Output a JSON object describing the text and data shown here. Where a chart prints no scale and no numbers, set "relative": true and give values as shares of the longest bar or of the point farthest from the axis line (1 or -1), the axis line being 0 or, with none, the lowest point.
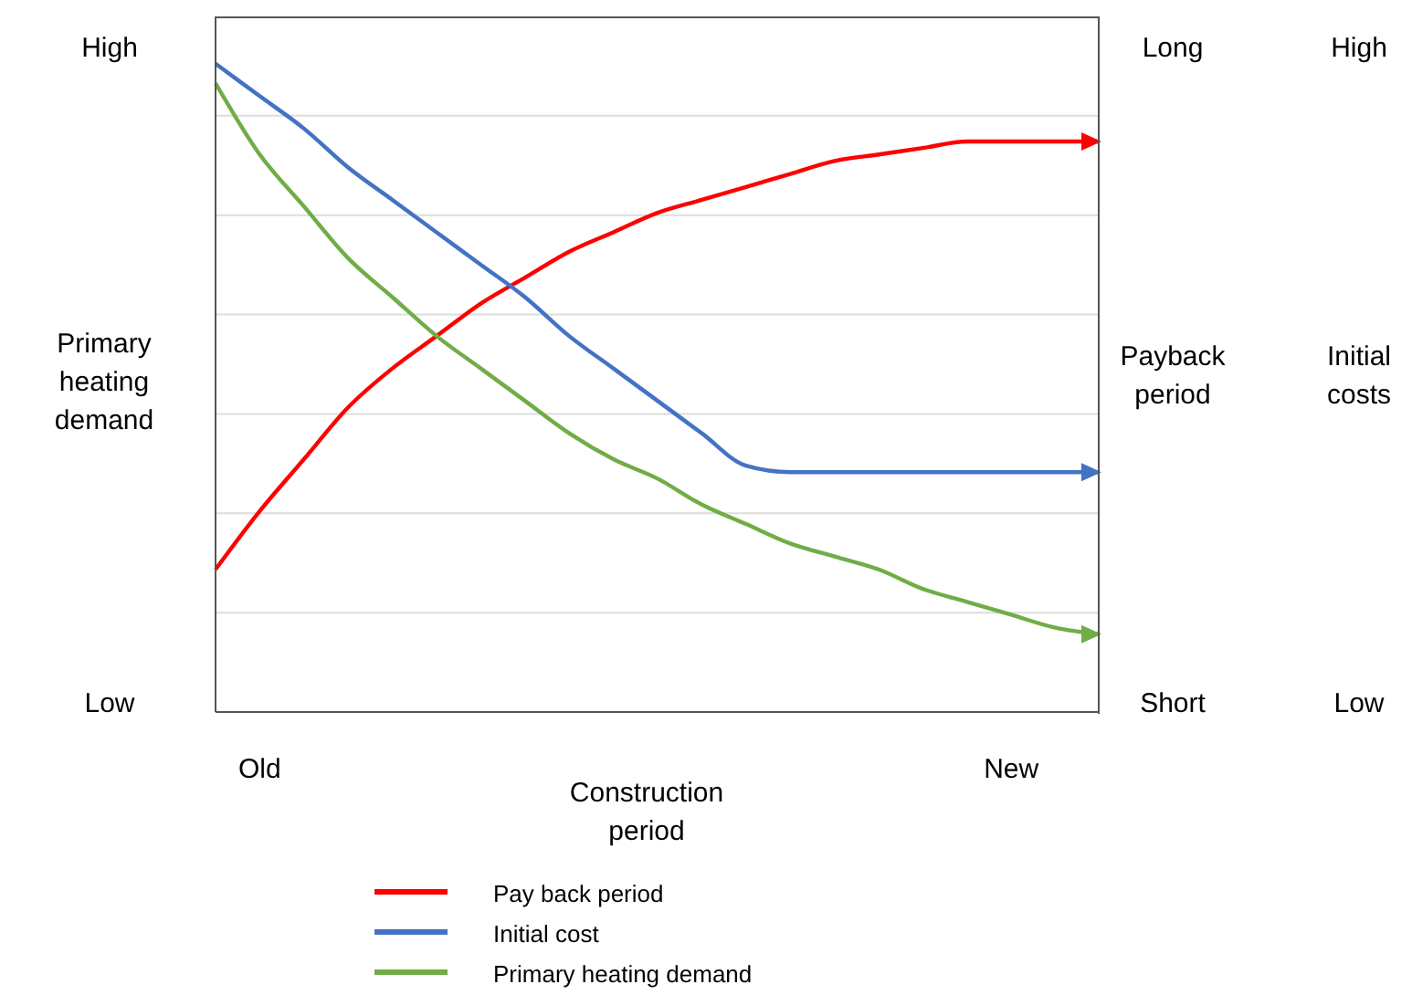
{
  "chart_data": {
    "type": "line",
    "relative": true,
    "xlabel": "Construction period",
    "ylabel": "Primary heating demand",
    "annotations": [
      "High",
      "Low",
      "Long",
      "Payback period",
      "Short",
      "High",
      "Initial costs",
      "Low"
    ],
    "categories": [
      null,
      "Old",
      null,
      null,
      null,
      null,
      null,
      null,
      null,
      null,
      null,
      null,
      null,
      null,
      null,
      null,
      null,
      null,
      "New",
      null,
      null
    ],
    "grid": "y",
    "legend": "bottom",
    "marker": "none",
    "line_style": "solid",
    "series": [
      {
        "name": "Pay back period",
        "color": "#ff0000",
        "values": [
          0.22,
          0.31,
          0.39,
          0.47,
          0.53,
          0.58,
          0.63,
          0.67,
          0.71,
          0.74,
          0.77,
          0.79,
          0.81,
          0.83,
          0.85,
          0.86,
          0.87,
          0.88,
          0.88,
          0.88,
          0.88
        ]
      },
      {
        "name": "Initial cost",
        "color": "#4472c4",
        "values": [
          1.0,
          0.95,
          0.9,
          0.84,
          0.79,
          0.74,
          0.69,
          0.64,
          0.58,
          0.53,
          0.48,
          0.43,
          0.38,
          0.37,
          0.37,
          0.37,
          0.37,
          0.37,
          0.37,
          0.37,
          0.37
        ]
      },
      {
        "name": "Primary heating demand",
        "color": "#70ad47",
        "values": [
          0.97,
          0.86,
          0.78,
          0.7,
          0.64,
          0.58,
          0.53,
          0.48,
          0.43,
          0.39,
          0.36,
          0.32,
          0.29,
          0.26,
          0.24,
          0.22,
          0.19,
          0.17,
          0.15,
          0.13,
          0.12
        ]
      }
    ]
  }
}
